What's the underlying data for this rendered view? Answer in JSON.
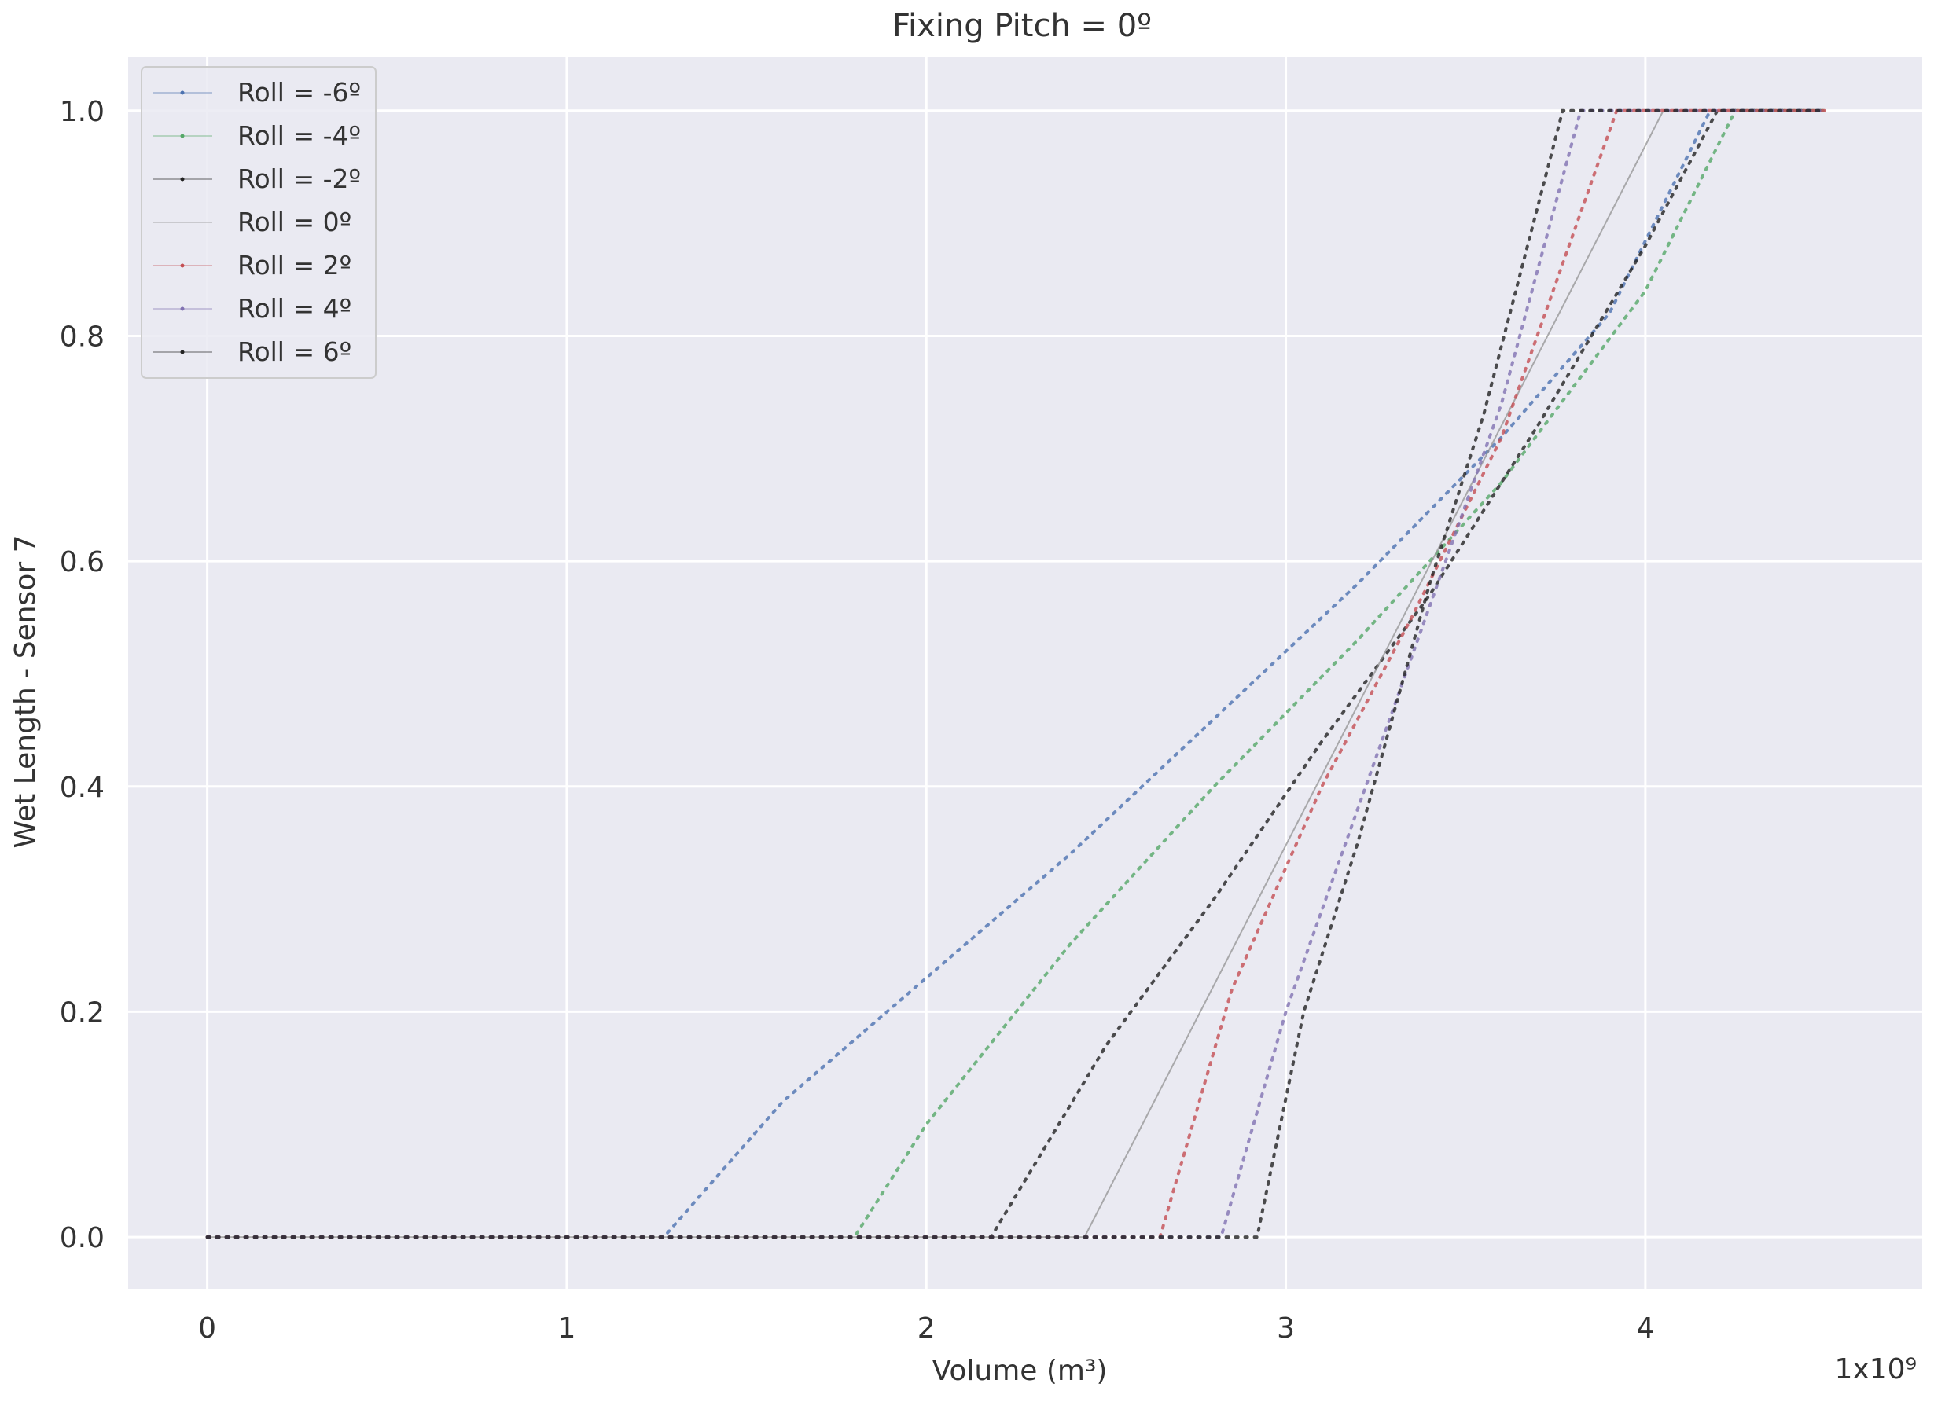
{
  "chart_data": {
    "type": "line",
    "title": "Fixing Pitch = 0º",
    "xlabel": "Volume (m³)",
    "ylabel": "Wet Length - Sensor 7",
    "x_offset_label": "1x10⁹",
    "xlim": [
      -0.22,
      4.77
    ],
    "ylim": [
      -0.046,
      1.048
    ],
    "xticks": [
      0,
      1,
      2,
      3,
      4
    ],
    "xtick_labels": [
      "0",
      "1",
      "2",
      "3",
      "4"
    ],
    "yticks": [
      0.0,
      0.2,
      0.4,
      0.6,
      0.8,
      1.0
    ],
    "ytick_labels": [
      "0.0",
      "0.2",
      "0.4",
      "0.6",
      "0.8",
      "1.0"
    ],
    "grid": true,
    "legend_position": "top-left",
    "colors": {
      "plot_bg": "#EAEAF2",
      "grid": "#FFFFFF",
      "text": "#333333"
    },
    "series": [
      {
        "name": "Roll = -6º",
        "color": "#4C72B0",
        "style": "dotted",
        "x": [
          0,
          1.27,
          1.6,
          2.0,
          2.4,
          2.8,
          3.2,
          3.6,
          3.9,
          4.18,
          4.5
        ],
        "y": [
          0,
          0,
          0.12,
          0.23,
          0.34,
          0.46,
          0.58,
          0.71,
          0.82,
          1.0,
          1.0
        ]
      },
      {
        "name": "Roll = -4º",
        "color": "#55A868",
        "style": "dotted",
        "x": [
          0,
          1.8,
          2.0,
          2.4,
          2.8,
          3.2,
          3.6,
          4.0,
          4.25,
          4.5
        ],
        "y": [
          0,
          0,
          0.1,
          0.26,
          0.4,
          0.53,
          0.67,
          0.84,
          1.0,
          1.0
        ]
      },
      {
        "name": "Roll = -2º",
        "color": "#222222",
        "style": "dotted",
        "x": [
          0,
          2.18,
          2.5,
          2.8,
          3.1,
          3.4,
          3.7,
          4.0,
          4.2,
          4.5
        ],
        "y": [
          0,
          0,
          0.17,
          0.3,
          0.44,
          0.57,
          0.72,
          0.88,
          1.0,
          1.0
        ]
      },
      {
        "name": "Roll = 0º",
        "color": "#8C8C8C",
        "style": "solid",
        "x": [
          0,
          2.44,
          4.05,
          4.5
        ],
        "y": [
          0,
          0,
          1.0,
          1.0
        ]
      },
      {
        "name": "Roll = 2º",
        "color": "#C44E52",
        "style": "dotted",
        "x": [
          0,
          2.65,
          2.85,
          3.1,
          3.35,
          3.6,
          3.92,
          4.5
        ],
        "y": [
          0,
          0,
          0.22,
          0.4,
          0.55,
          0.71,
          1.0,
          1.0
        ]
      },
      {
        "name": "Roll = 4º",
        "color": "#8172B2",
        "style": "dotted",
        "x": [
          0,
          2.82,
          3.0,
          3.2,
          3.4,
          3.6,
          3.82,
          4.5
        ],
        "y": [
          0,
          0,
          0.2,
          0.38,
          0.56,
          0.74,
          1.0,
          1.0
        ]
      },
      {
        "name": "Roll = 6º",
        "color": "#222222",
        "style": "dotted",
        "x": [
          0,
          2.92,
          3.05,
          3.2,
          3.4,
          3.55,
          3.77,
          4.5
        ],
        "y": [
          0,
          0,
          0.2,
          0.35,
          0.58,
          0.73,
          1.0,
          1.0
        ]
      }
    ]
  }
}
